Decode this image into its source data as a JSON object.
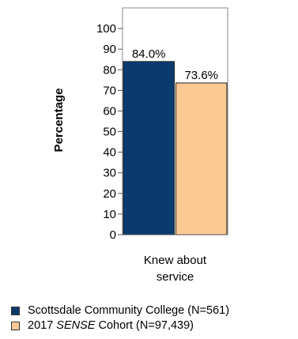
{
  "chart_data": {
    "type": "bar",
    "categories": [
      "Knew about service"
    ],
    "category_lines": [
      "Knew about",
      "service"
    ],
    "ylabel": "Percentage",
    "ylim": [
      0,
      110
    ],
    "yticks": [
      0,
      10,
      20,
      30,
      40,
      50,
      60,
      70,
      80,
      90,
      100
    ],
    "series": [
      {
        "name": "Scottsdale Community College (N=561)",
        "values": [
          84.0
        ],
        "labels": [
          "84.0%"
        ],
        "color": "#0b3a6e"
      },
      {
        "name": "2017 SENSE Cohort (N=97,439)",
        "values": [
          73.6
        ],
        "labels": [
          "73.6%"
        ],
        "color": "#fcc894"
      }
    ],
    "legend": {
      "placement": "bottom",
      "items": [
        {
          "prefix": "Scottsdale Community College (N=561)",
          "italic": "",
          "suffix": "",
          "color": "#0b3a6e"
        },
        {
          "prefix": "2017 ",
          "italic": "SENSE",
          "suffix": " Cohort (N=97,439)",
          "color": "#fcc894"
        }
      ]
    }
  }
}
